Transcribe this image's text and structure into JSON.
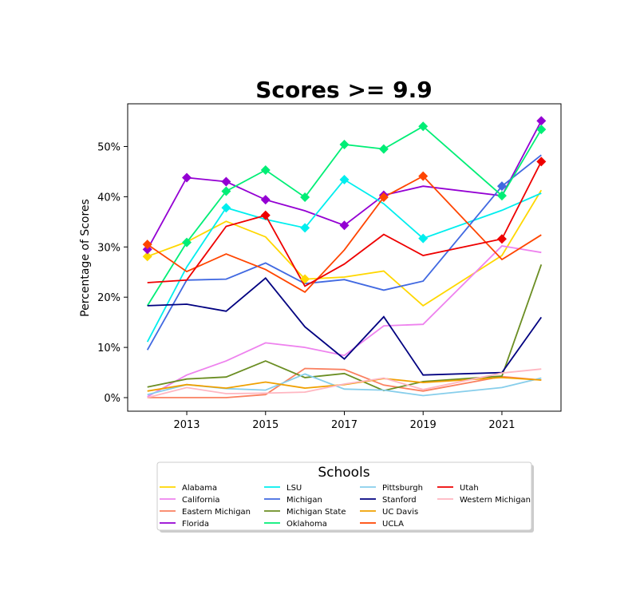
{
  "chart_data": {
    "type": "line",
    "title": "Scores >= 9.9",
    "xlabel": "",
    "ylabel": "Percentage of Scores",
    "x": [
      2012,
      2013,
      2014,
      2015,
      2016,
      2017,
      2018,
      2019,
      2021,
      2022
    ],
    "xticks": [
      "2013",
      "2015",
      "2017",
      "2019",
      "2021"
    ],
    "yticks": [
      "0%",
      "10%",
      "20%",
      "30%",
      "40%",
      "50%"
    ],
    "ylim": [
      -2.7,
      58.5
    ],
    "xlim": [
      2011.5,
      2022.5
    ],
    "legend_title": "Schools",
    "legend_position": "bottom-center",
    "grid": false,
    "series": [
      {
        "name": "Alabama",
        "color": "#FFD700",
        "values": [
          28.1,
          31.0,
          35.1,
          32.0,
          23.6,
          24.0,
          25.2,
          18.3,
          28.3,
          41.3
        ],
        "markers": [
          0,
          4
        ]
      },
      {
        "name": "California",
        "color": "#EE82EE",
        "values": [
          0.2,
          4.5,
          7.3,
          10.9,
          10.0,
          8.4,
          14.3,
          14.6,
          30.2,
          28.9
        ],
        "markers": []
      },
      {
        "name": "Eastern Michigan",
        "color": "#FA8060",
        "values": [
          0.0,
          0.0,
          0.0,
          0.6,
          5.8,
          5.6,
          2.5,
          1.3,
          4.2,
          3.5
        ],
        "markers": []
      },
      {
        "name": "Florida",
        "color": "#9400D3",
        "values": [
          29.5,
          43.8,
          43.0,
          39.4,
          37.2,
          34.3,
          40.3,
          42.1,
          40.2,
          55.1
        ],
        "markers": [
          0,
          1,
          2,
          3,
          5,
          6,
          9
        ]
      },
      {
        "name": "LSU",
        "color": "#00EEEE",
        "values": [
          11.1,
          26.0,
          37.8,
          35.5,
          33.8,
          43.4,
          38.6,
          31.7,
          37.3,
          40.7
        ],
        "markers": [
          2,
          4,
          5,
          7
        ]
      },
      {
        "name": "Michigan",
        "color": "#4169E1",
        "values": [
          9.5,
          23.4,
          23.6,
          26.8,
          22.7,
          23.5,
          21.4,
          23.2,
          42.1,
          48.3
        ],
        "markers": [
          8
        ]
      },
      {
        "name": "Michigan State",
        "color": "#6B8E23",
        "values": [
          2.1,
          3.7,
          4.1,
          7.3,
          4.0,
          4.8,
          1.4,
          3.2,
          4.3,
          26.5
        ],
        "markers": []
      },
      {
        "name": "Oklahoma",
        "color": "#00EE76",
        "values": [
          18.3,
          30.9,
          41.1,
          45.3,
          39.9,
          50.4,
          49.5,
          54.0,
          40.2,
          53.4
        ],
        "markers": [
          1,
          2,
          3,
          4,
          5,
          6,
          7,
          8,
          9
        ]
      },
      {
        "name": "Pittsburgh",
        "color": "#87CEEB",
        "values": [
          0.6,
          2.6,
          1.8,
          1.5,
          4.7,
          1.7,
          1.5,
          0.4,
          2.0,
          3.9
        ],
        "markers": []
      },
      {
        "name": "Stanford",
        "color": "#000080",
        "values": [
          18.3,
          18.6,
          17.2,
          23.8,
          14.1,
          7.7,
          16.1,
          4.5,
          5.0,
          16.0
        ],
        "markers": []
      },
      {
        "name": "UC Davis",
        "color": "#F0A000",
        "values": [
          1.3,
          2.6,
          1.9,
          3.1,
          1.9,
          2.6,
          3.8,
          3.0,
          4.0,
          3.5
        ],
        "markers": []
      },
      {
        "name": "UCLA",
        "color": "#FF4500",
        "values": [
          30.5,
          25.1,
          28.6,
          25.5,
          21.0,
          29.4,
          39.9,
          44.1,
          27.5,
          32.4
        ],
        "markers": [
          0,
          6,
          7
        ]
      },
      {
        "name": "Utah",
        "color": "#EE0000",
        "values": [
          22.9,
          23.4,
          34.1,
          36.3,
          22.2,
          26.6,
          32.5,
          28.3,
          31.6,
          47.0
        ],
        "markers": [
          3,
          8,
          9
        ]
      },
      {
        "name": "Western Michigan",
        "color": "#FFB6C1",
        "values": [
          0.0,
          2.0,
          0.8,
          0.9,
          1.1,
          2.7,
          3.9,
          1.6,
          4.9,
          5.7
        ],
        "markers": []
      }
    ]
  }
}
